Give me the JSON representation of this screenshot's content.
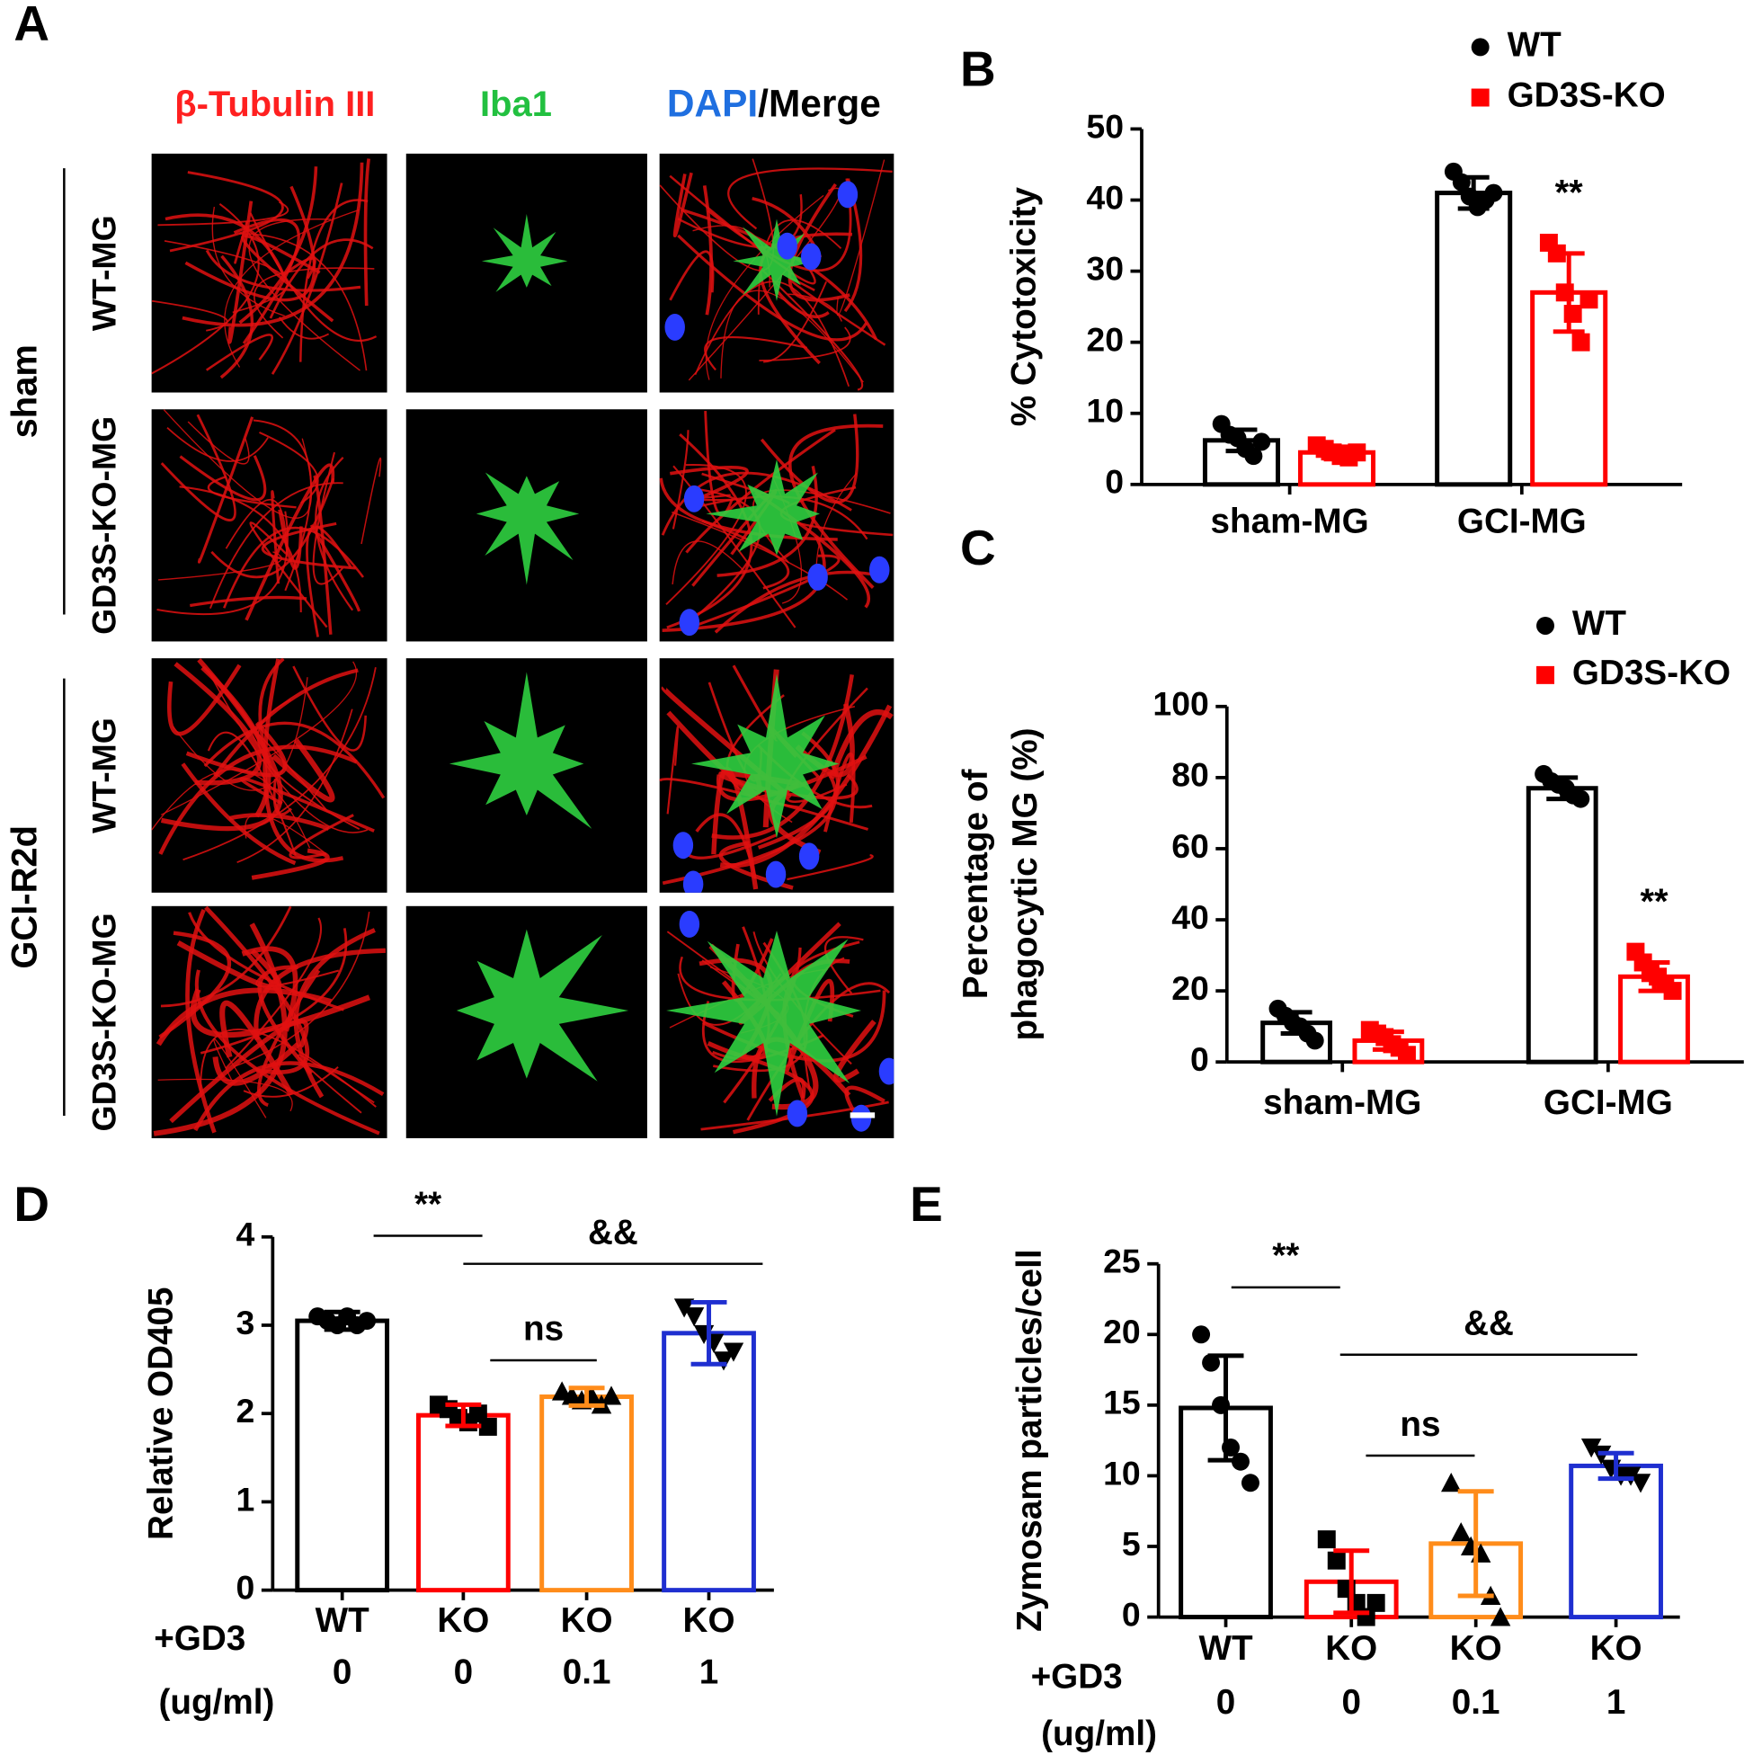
{
  "panel_a": {
    "label": "A",
    "columns": [
      "β-Tubulin III",
      "Iba1",
      "DAPI",
      "/Merge"
    ],
    "groups": [
      {
        "label": "sham",
        "rows": [
          "WT-MG",
          "GD3S-KO-MG"
        ]
      },
      {
        "label": "GCI-R2d",
        "rows": [
          "WT-MG",
          "GD3S-KO-MG"
        ]
      }
    ]
  },
  "chart_data": [
    {
      "type": "grouped-bar",
      "panel": "B",
      "ylabel": [
        "% Cytotoxicity"
      ],
      "categories": [
        "sham-MG",
        "GCI-MG"
      ],
      "series": [
        {
          "name": "WT",
          "color": "#000000",
          "marker": "circle",
          "values": [
            6.2,
            41
          ],
          "errors": [
            1.5,
            2.2
          ],
          "points": [
            [
              8.5,
              7,
              6.5,
              5,
              4,
              6
            ],
            [
              44,
              42.5,
              40.5,
              39,
              40,
              41
            ]
          ]
        },
        {
          "name": "GD3S-KO",
          "color": "#ff0000",
          "marker": "square",
          "values": [
            4.5,
            27
          ],
          "errors": [
            0.8,
            5.5
          ],
          "points": [
            [
              5.5,
              5,
              4.5,
              4,
              3.8,
              4.5
            ],
            [
              34,
              32.5,
              27,
              24,
              20,
              26
            ]
          ]
        }
      ],
      "ylim": [
        0,
        50
      ],
      "yticks": [
        0,
        10,
        20,
        30,
        40,
        50
      ],
      "annotations": [
        {
          "text": "**",
          "series": 1,
          "category": 1
        }
      ]
    },
    {
      "type": "grouped-bar",
      "panel": "C",
      "ylabel": [
        "Percentage of",
        "phagocytic MG (%)"
      ],
      "categories": [
        "sham-MG",
        "GCI-MG"
      ],
      "series": [
        {
          "name": "WT",
          "color": "#000000",
          "marker": "circle",
          "values": [
            11,
            77
          ],
          "errors": [
            3,
            3
          ],
          "points": [
            [
              15,
              13,
              11,
              10,
              8,
              6
            ],
            [
              81,
              79,
              78,
              77,
              75,
              74
            ]
          ]
        },
        {
          "name": "GD3S-KO",
          "color": "#ff0000",
          "marker": "square",
          "values": [
            6,
            24
          ],
          "errors": [
            2.5,
            4
          ],
          "points": [
            [
              9,
              8,
              7,
              5,
              4,
              2
            ],
            [
              31,
              28,
              25,
              24,
              22,
              20
            ]
          ]
        }
      ],
      "ylim": [
        0,
        100
      ],
      "yticks": [
        0,
        20,
        40,
        60,
        80,
        100
      ],
      "annotations": [
        {
          "text": "**",
          "series": 1,
          "category": 1
        }
      ]
    },
    {
      "type": "dose-bar",
      "panel": "D",
      "ylabel": [
        "Relative OD405"
      ],
      "categories": [
        "WT",
        "KO",
        "KO",
        "KO"
      ],
      "dose_label": [
        "+GD3",
        "(ug/ml)"
      ],
      "doses": [
        0,
        0,
        0.1,
        1
      ],
      "values": [
        3.05,
        1.98,
        2.19,
        2.91
      ],
      "errors": [
        0.1,
        0.12,
        0.1,
        0.35
      ],
      "colors": [
        "#000000",
        "#ff0000",
        "#ff8c1a",
        "#1f2fd0"
      ],
      "markers": [
        "circle",
        "square",
        "triangle",
        "triangle-down"
      ],
      "points": [
        [
          3.1,
          3.05,
          3.0,
          3.1,
          3.0,
          3.05
        ],
        [
          2.1,
          2.05,
          1.95,
          1.9,
          2.0,
          1.85
        ],
        [
          2.25,
          2.2,
          2.15,
          2.2,
          2.1,
          2.2
        ],
        [
          3.2,
          3.1,
          2.9,
          2.8,
          2.6,
          2.7
        ]
      ],
      "ylim": [
        0,
        4
      ],
      "yticks": [
        0,
        1,
        2,
        3,
        4
      ],
      "comparisons": [
        "**",
        "&&",
        "ns"
      ]
    },
    {
      "type": "dose-bar",
      "panel": "E",
      "ylabel": [
        "Zymosam particles/cell"
      ],
      "categories": [
        "WT",
        "KO",
        "KO",
        "KO"
      ],
      "dose_label": [
        "+GD3",
        "(ug/ml)"
      ],
      "doses": [
        0,
        0,
        0.1,
        1
      ],
      "values": [
        14.8,
        2.5,
        5.2,
        10.7
      ],
      "errors": [
        3.7,
        2.2,
        3.7,
        0.9
      ],
      "colors": [
        "#000000",
        "#ff0000",
        "#ff8c1a",
        "#1f2fd0"
      ],
      "markers": [
        "circle",
        "square",
        "triangle",
        "triangle-down"
      ],
      "points": [
        [
          20,
          18,
          15,
          12,
          11,
          9.5
        ],
        [
          5.5,
          4,
          2,
          1,
          0,
          1
        ],
        [
          9.5,
          6,
          5,
          4.5,
          1.5,
          0
        ],
        [
          12,
          11.5,
          10.5,
          10,
          10,
          9.5
        ]
      ],
      "ylim": [
        0,
        25
      ],
      "yticks": [
        0,
        5,
        10,
        15,
        20,
        25
      ],
      "comparisons": [
        "**",
        "&&",
        "ns"
      ]
    }
  ]
}
